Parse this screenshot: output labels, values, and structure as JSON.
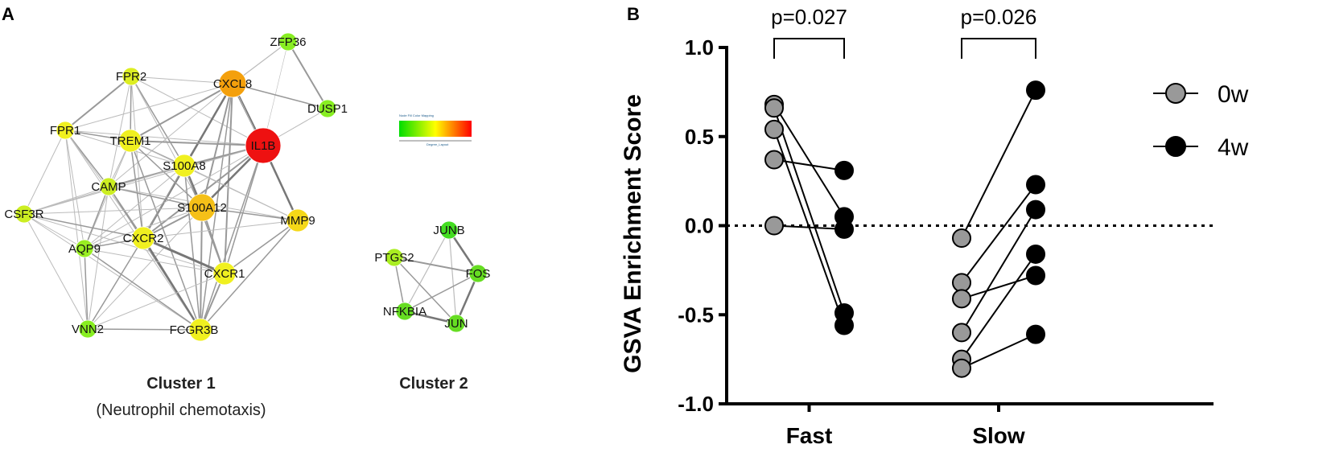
{
  "panel_a": {
    "label": "A",
    "cluster1": {
      "title": "Cluster 1",
      "subtitle": "(Neutrophil chemotaxis)"
    },
    "cluster2": {
      "title": "Cluster 2"
    },
    "color_mapping": {
      "title": "Node Fill Color Mapping",
      "axis_label": "Degree_Layout",
      "colors": [
        "#00dd00",
        "#ffff00",
        "#ff0000"
      ]
    },
    "nodes": [
      {
        "id": "ZFP36",
        "color": "#88ee22",
        "size": "small"
      },
      {
        "id": "FPR2",
        "color": "#ddee22",
        "size": "small"
      },
      {
        "id": "CXCL8",
        "color": "#f4a00c",
        "size": "large"
      },
      {
        "id": "DUSP1",
        "color": "#88ee22",
        "size": "small"
      },
      {
        "id": "FPR1",
        "color": "#f0f020",
        "size": "small"
      },
      {
        "id": "TREM1",
        "color": "#f0f020",
        "size": "medium"
      },
      {
        "id": "IL1B",
        "color": "#ee1111",
        "size": "xlarge"
      },
      {
        "id": "S100A8",
        "color": "#f0f020",
        "size": "medium"
      },
      {
        "id": "CAMP",
        "color": "#ccee22",
        "size": "small"
      },
      {
        "id": "S100A12",
        "color": "#f5c018",
        "size": "large"
      },
      {
        "id": "CSF3R",
        "color": "#ccee22",
        "size": "small"
      },
      {
        "id": "MMP9",
        "color": "#f5d818",
        "size": "medium"
      },
      {
        "id": "CXCR2",
        "color": "#f0f020",
        "size": "medium"
      },
      {
        "id": "AQP9",
        "color": "#99ee22",
        "size": "small"
      },
      {
        "id": "CXCR1",
        "color": "#f0f020",
        "size": "medium"
      },
      {
        "id": "VNN2",
        "color": "#88ee22",
        "size": "small"
      },
      {
        "id": "FCGR3B",
        "color": "#f0f020",
        "size": "medium"
      },
      {
        "id": "JUNB",
        "color": "#44dd22",
        "size": "small"
      },
      {
        "id": "PTGS2",
        "color": "#aaee22",
        "size": "small"
      },
      {
        "id": "FOS",
        "color": "#66dd22",
        "size": "small"
      },
      {
        "id": "NFKBIA",
        "color": "#66dd22",
        "size": "small"
      },
      {
        "id": "JUN",
        "color": "#66dd22",
        "size": "small"
      }
    ]
  },
  "chart_data": {
    "panel_label": "B",
    "type": "scatter",
    "subtype": "paired before-after plot",
    "title": "",
    "xlabel": "",
    "ylabel": "GSVA Enrichment Score",
    "ylim": [
      -1.0,
      1.0
    ],
    "yticks": [
      "1.0",
      "0.5",
      "0.0",
      "-0.5",
      "-1.0"
    ],
    "reference_line": 0.0,
    "categories": [
      "Fast",
      "Slow"
    ],
    "series": [
      {
        "name": "0w",
        "color": "#999999"
      },
      {
        "name": "4w",
        "color": "#000000"
      }
    ],
    "pairs": {
      "Fast": [
        [
          0.68,
          0.05
        ],
        [
          0.66,
          -0.49
        ],
        [
          0.54,
          -0.56
        ],
        [
          0.37,
          0.31
        ],
        [
          0.0,
          -0.02
        ]
      ],
      "Slow": [
        [
          -0.07,
          0.76
        ],
        [
          -0.32,
          0.23
        ],
        [
          -0.41,
          -0.28
        ],
        [
          -0.6,
          0.09
        ],
        [
          -0.75,
          -0.16
        ],
        [
          -0.8,
          -0.61
        ]
      ]
    },
    "p_values": {
      "Fast": "p=0.027",
      "Slow": "p=0.026"
    },
    "legend_position": "right"
  }
}
